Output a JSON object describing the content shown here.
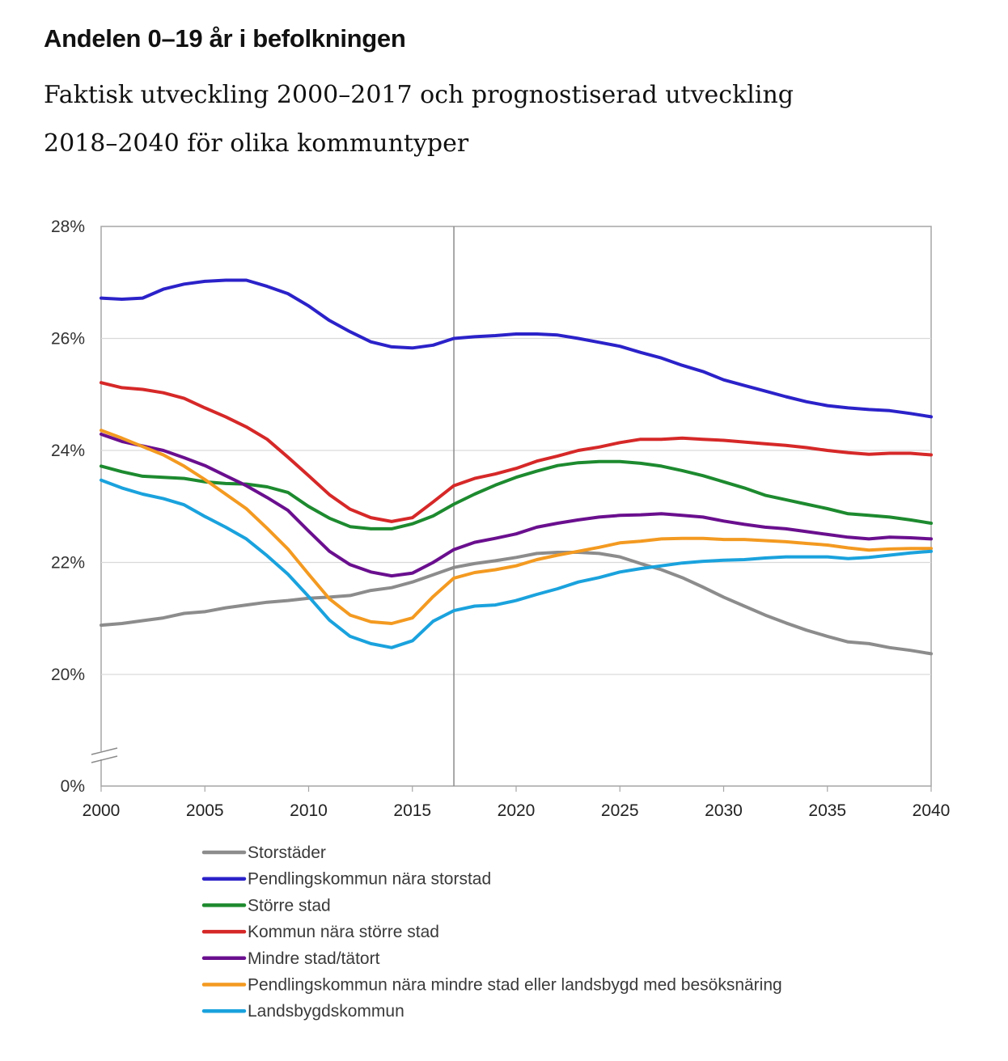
{
  "header": {
    "title": "Andelen 0–19 år i befolkningen",
    "subtitle_line1": "Faktisk utveckling 2000–2017 och prognostiserad utveckling",
    "subtitle_line2": "2018–2040 för olika kommuntyper"
  },
  "chart_data": {
    "type": "line",
    "title": "Andelen 0–19 år i befolkningen",
    "subtitle": "Faktisk utveckling 2000–2017 och prognostiserad utveckling 2018–2040 för olika kommuntyper",
    "xlabel": "",
    "ylabel": "",
    "x": [
      2000,
      2001,
      2002,
      2003,
      2004,
      2005,
      2006,
      2007,
      2008,
      2009,
      2010,
      2011,
      2012,
      2013,
      2014,
      2015,
      2016,
      2017,
      2018,
      2019,
      2020,
      2021,
      2022,
      2023,
      2024,
      2025,
      2026,
      2027,
      2028,
      2029,
      2030,
      2031,
      2032,
      2033,
      2034,
      2035,
      2036,
      2037,
      2038,
      2039,
      2040
    ],
    "x_ticks": [
      2000,
      2005,
      2010,
      2015,
      2020,
      2025,
      2030,
      2035,
      2040
    ],
    "x_tick_labels": [
      "2000",
      "2005",
      "2010",
      "2015",
      "2020",
      "2025",
      "2030",
      "2035",
      "2040"
    ],
    "xlim": [
      2000,
      2040
    ],
    "y_ticks": [
      20,
      22,
      24,
      26,
      28
    ],
    "y_tick_labels": [
      "20%",
      "22%",
      "24%",
      "26%",
      "28%"
    ],
    "y_zero_label": "0%",
    "ylim": [
      18,
      28
    ],
    "axis_break": true,
    "grid": true,
    "divider_year": 2017,
    "legend_position": "bottom",
    "series": [
      {
        "name": "Storstäder",
        "color": "#8c8c8c",
        "values": [
          20.88,
          20.91,
          20.96,
          21.01,
          21.09,
          21.12,
          21.19,
          21.24,
          21.29,
          21.32,
          21.36,
          21.38,
          21.41,
          21.5,
          21.55,
          21.65,
          21.78,
          21.91,
          21.98,
          22.03,
          22.09,
          22.16,
          22.18,
          22.18,
          22.16,
          22.1,
          21.98,
          21.87,
          21.73,
          21.56,
          21.38,
          21.22,
          21.06,
          20.92,
          20.79,
          20.68,
          20.58,
          20.55,
          20.48,
          20.43,
          20.37
        ]
      },
      {
        "name": "Pendlingskommun nära storstad",
        "color": "#2b22c9",
        "values": [
          26.72,
          26.7,
          26.72,
          26.88,
          26.97,
          27.02,
          27.04,
          27.04,
          26.93,
          26.8,
          26.58,
          26.32,
          26.12,
          25.94,
          25.85,
          25.83,
          25.88,
          26.0,
          26.03,
          26.05,
          26.08,
          26.08,
          26.06,
          26.0,
          25.93,
          25.86,
          25.75,
          25.65,
          25.52,
          25.41,
          25.26,
          25.16,
          25.06,
          24.96,
          24.87,
          24.8,
          24.76,
          24.73,
          24.71,
          24.66,
          24.6
        ]
      },
      {
        "name": "Större stad",
        "color": "#1d8a2f",
        "values": [
          23.72,
          23.62,
          23.54,
          23.52,
          23.5,
          23.44,
          23.41,
          23.4,
          23.35,
          23.25,
          23.0,
          22.79,
          22.64,
          22.6,
          22.6,
          22.69,
          22.83,
          23.04,
          23.22,
          23.38,
          23.52,
          23.63,
          23.73,
          23.78,
          23.8,
          23.8,
          23.77,
          23.72,
          23.64,
          23.55,
          23.44,
          23.33,
          23.2,
          23.12,
          23.04,
          22.96,
          22.87,
          22.84,
          22.81,
          22.76,
          22.7
        ]
      },
      {
        "name": "Kommun nära större stad",
        "color": "#d62828",
        "values": [
          25.21,
          25.12,
          25.09,
          25.03,
          24.93,
          24.76,
          24.6,
          24.42,
          24.2,
          23.88,
          23.55,
          23.21,
          22.95,
          22.8,
          22.73,
          22.8,
          23.08,
          23.37,
          23.5,
          23.58,
          23.68,
          23.81,
          23.9,
          24.0,
          24.06,
          24.14,
          24.2,
          24.2,
          24.22,
          24.2,
          24.18,
          24.15,
          24.12,
          24.09,
          24.05,
          24.0,
          23.96,
          23.93,
          23.95,
          23.95,
          23.92
        ]
      },
      {
        "name": "Mindre stad/tätort",
        "color": "#6a0f8e",
        "values": [
          24.29,
          24.16,
          24.08,
          24.0,
          23.87,
          23.73,
          23.55,
          23.37,
          23.16,
          22.93,
          22.56,
          22.2,
          21.96,
          21.83,
          21.76,
          21.81,
          22.0,
          22.23,
          22.36,
          22.43,
          22.51,
          22.63,
          22.7,
          22.76,
          22.81,
          22.84,
          22.85,
          22.87,
          22.84,
          22.81,
          22.74,
          22.68,
          22.63,
          22.6,
          22.55,
          22.5,
          22.45,
          22.42,
          22.45,
          22.44,
          22.42
        ]
      },
      {
        "name": "Pendlingskommun nära mindre stad eller landsbygd med besöksnäring",
        "color": "#f39a21",
        "values": [
          24.36,
          24.22,
          24.07,
          23.92,
          23.72,
          23.48,
          23.22,
          22.96,
          22.61,
          22.24,
          21.79,
          21.35,
          21.06,
          20.94,
          20.91,
          21.01,
          21.39,
          21.72,
          21.82,
          21.87,
          21.94,
          22.05,
          22.13,
          22.2,
          22.27,
          22.35,
          22.38,
          22.42,
          22.43,
          22.43,
          22.41,
          22.41,
          22.39,
          22.37,
          22.34,
          22.31,
          22.26,
          22.22,
          22.24,
          22.25,
          22.25
        ]
      },
      {
        "name": "Landsbygdskommun",
        "color": "#1aa2dd",
        "values": [
          23.47,
          23.33,
          23.22,
          23.14,
          23.03,
          22.82,
          22.63,
          22.42,
          22.12,
          21.79,
          21.39,
          20.97,
          20.68,
          20.55,
          20.48,
          20.6,
          20.95,
          21.14,
          21.22,
          21.24,
          21.32,
          21.43,
          21.53,
          21.65,
          21.73,
          21.83,
          21.89,
          21.94,
          21.99,
          22.02,
          22.04,
          22.05,
          22.08,
          22.1,
          22.1,
          22.1,
          22.07,
          22.09,
          22.13,
          22.17,
          22.2
        ]
      }
    ]
  }
}
